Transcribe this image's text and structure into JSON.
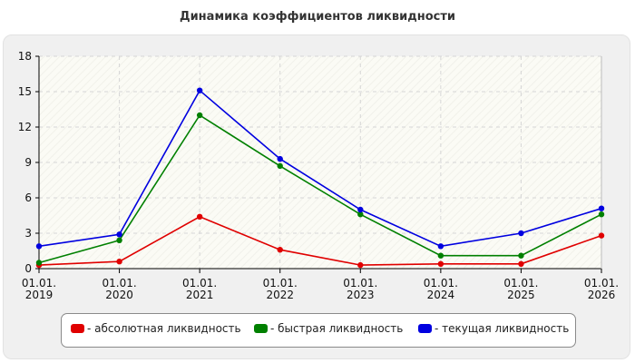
{
  "chart_data": {
    "type": "line",
    "title": "Динамика коэффициентов ликвидности",
    "xlabel": "",
    "ylabel": "",
    "categories": [
      "01.01. 2019",
      "01.01. 2020",
      "01.01. 2021",
      "01.01. 2022",
      "01.01. 2023",
      "01.01. 2024",
      "01.01. 2025",
      "01.01. 2026"
    ],
    "category_lines": [
      [
        "01.01.",
        "2019"
      ],
      [
        "01.01.",
        "2020"
      ],
      [
        "01.01.",
        "2021"
      ],
      [
        "01.01.",
        "2022"
      ],
      [
        "01.01.",
        "2023"
      ],
      [
        "01.01.",
        "2024"
      ],
      [
        "01.01.",
        "2025"
      ],
      [
        "01.01.",
        "2026"
      ]
    ],
    "ylim": [
      0,
      18
    ],
    "yticks": [
      0,
      3,
      6,
      9,
      12,
      15,
      18
    ],
    "grid": true,
    "legend_position": "bottom",
    "series": [
      {
        "name": "- абсолютная ликвидность",
        "color": "#e00000",
        "values": [
          0.3,
          0.6,
          4.4,
          1.6,
          0.3,
          0.4,
          0.4,
          2.8
        ]
      },
      {
        "name": "- быстрая ликвидность",
        "color": "#008000",
        "values": [
          0.5,
          2.4,
          13.0,
          8.7,
          4.6,
          1.1,
          1.1,
          4.6
        ]
      },
      {
        "name": "- текущая ликвидность",
        "color": "#0000e0",
        "values": [
          1.9,
          2.9,
          15.1,
          9.3,
          5.0,
          1.9,
          3.0,
          5.1
        ]
      }
    ]
  }
}
